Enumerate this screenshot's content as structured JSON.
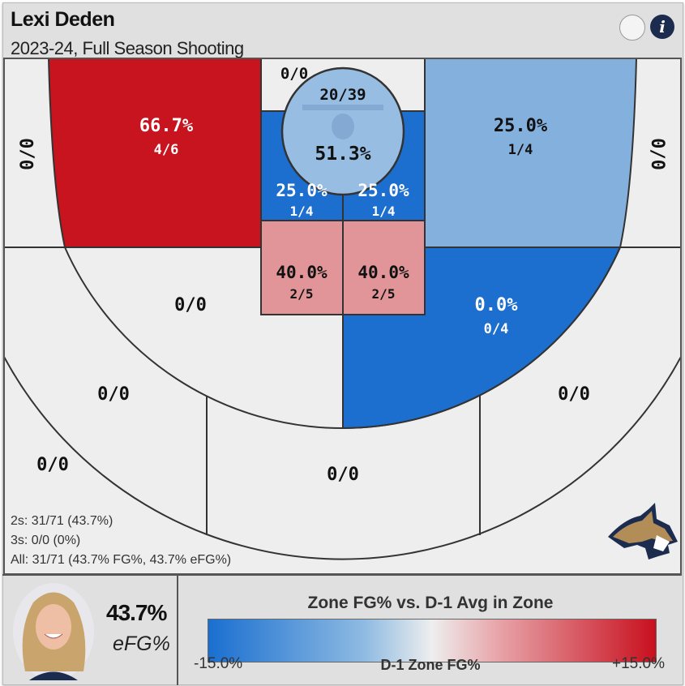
{
  "header": {
    "player_name": "Lexi Deden",
    "subtitle": "2023-24, Full Season Shooting"
  },
  "buttons": {
    "info": "i"
  },
  "zones": {
    "left_corner": {
      "pct": "",
      "made": "0/0"
    },
    "left_wing_mid": {
      "pct": "66.7%",
      "made": "4/6",
      "color": "#c8141f"
    },
    "top_key": {
      "made": "0/0"
    },
    "restricted": {
      "pct": "51.3%",
      "made": "20/39",
      "color": "#98bde3"
    },
    "paint_left": {
      "pct": "25.0%",
      "made": "1/4",
      "color": "#1c6fcf"
    },
    "paint_right": {
      "pct": "25.0%",
      "made": "1/4",
      "color": "#1c6fcf"
    },
    "lower_paint_left": {
      "pct": "40.0%",
      "made": "2/5",
      "color": "#e19598"
    },
    "lower_paint_right": {
      "pct": "40.0%",
      "made": "2/5",
      "color": "#e19598"
    },
    "right_wing_mid": {
      "pct": "25.0%",
      "made": "1/4",
      "color": "#84b0de"
    },
    "right_corner": {
      "made": "0/0"
    },
    "left_elbow_mid": {
      "made": "0/0"
    },
    "right_elbow_mid": {
      "pct": "0.0%",
      "made": "0/4",
      "color": "#1c6fcf"
    },
    "left_wing_three": {
      "made": "0/0"
    },
    "left_deep": {
      "made": "0/0"
    },
    "top_three": {
      "made": "0/0"
    },
    "right_wing_three": {
      "made": "0/0"
    }
  },
  "stats": {
    "twos": "2s: 31/71 (43.7%)",
    "threes": "3s: 0/0 (0%)",
    "all": "All: 31/71 (43.7% FG%, 43.7% eFG%)"
  },
  "summary": {
    "efg_value": "43.7%",
    "efg_label": "eFG%"
  },
  "legend": {
    "title": "Zone FG% vs. D-1 Avg in Zone",
    "min": "-15.0%",
    "mid": "D-1 Zone FG%",
    "max": "+15.0%",
    "min_color": "#1a6fd0",
    "max_color": "#c8101e"
  }
}
